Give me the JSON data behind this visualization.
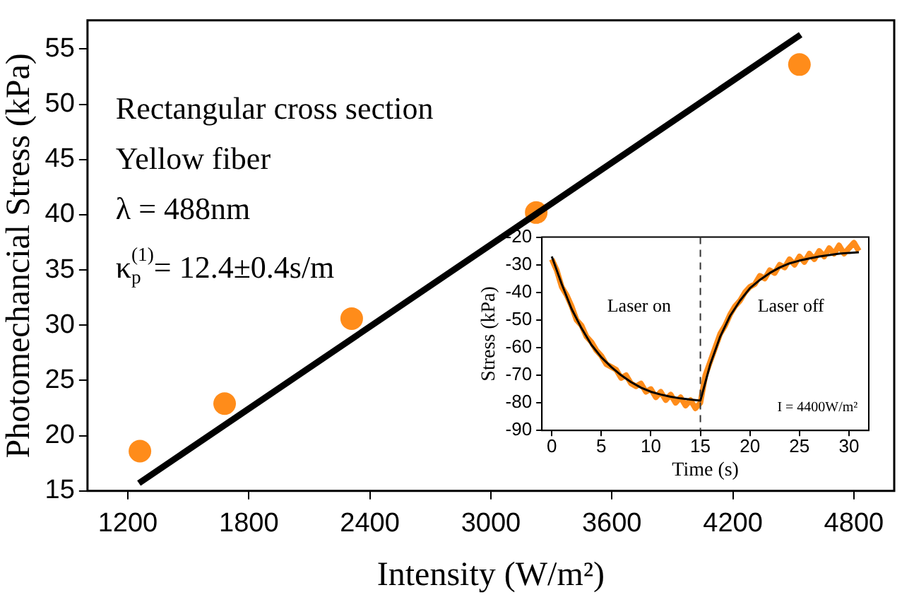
{
  "chart_data": [
    {
      "type": "scatter",
      "xlabel": "Intensity (W/m²)",
      "ylabel": "Photomechancial Stress (kPa)",
      "xlim": [
        1000,
        5000
      ],
      "ylim": [
        15,
        57.6
      ],
      "xticks": [
        1200,
        1800,
        2400,
        3000,
        3600,
        4200,
        4800
      ],
      "yticks": [
        15,
        20,
        25,
        30,
        35,
        40,
        45,
        50,
        55
      ],
      "annotations": [
        "Rectangular cross section",
        "Yellow fiber",
        "λ = 488nm",
        "κ$_{p}$$^{(1)}$= 12.4±0.4s/m"
      ],
      "series": [
        {
          "marker": "circle",
          "color": "#ff8c1a",
          "x": [
            1260,
            1680,
            2310,
            3225,
            4530
          ],
          "values": [
            18.6,
            22.9,
            30.6,
            40.2,
            53.6
          ]
        },
        {
          "type": "line",
          "color": "#000000",
          "x": [
            1255,
            4536
          ],
          "values": [
            15.7,
            56.3
          ]
        }
      ]
    },
    {
      "type": "line",
      "xlabel": "Time (s)",
      "ylabel": "Stress (kPa)",
      "xlim": [
        -1,
        32
      ],
      "ylim": [
        -90,
        -20
      ],
      "xticks": [
        0,
        5,
        10,
        15,
        20,
        25,
        30
      ],
      "yticks": [
        -90,
        -80,
        -70,
        -60,
        -50,
        -40,
        -30,
        -20
      ],
      "ref_lines": [
        {
          "axis": "x",
          "value": 15,
          "color": "#333333",
          "line_style": "dashed"
        }
      ],
      "annotations": [
        "Laser on",
        "Laser off",
        "I = 4400W/m²"
      ],
      "series": [
        {
          "color": "#ff8c1a",
          "x": [
            0,
            0.5,
            1,
            1.5,
            2,
            2.5,
            3,
            3.5,
            4,
            4.5,
            5,
            5.5,
            6,
            6.5,
            7,
            7.5,
            8,
            8.5,
            9,
            9.5,
            10,
            10.5,
            11,
            11.5,
            12,
            12.5,
            13,
            13.5,
            14,
            14.5,
            15,
            15.5,
            16,
            16.5,
            17,
            17.5,
            18,
            18.5,
            19,
            19.5,
            20,
            20.5,
            21,
            21.5,
            22,
            22.5,
            23,
            23.5,
            24,
            24.5,
            25,
            25.5,
            26,
            26.5,
            27,
            27.5,
            28,
            28.5,
            29,
            29.5,
            30,
            30.5,
            31
          ],
          "values": [
            -28,
            -32,
            -38,
            -41,
            -45,
            -50,
            -52,
            -56,
            -58,
            -61,
            -63,
            -66,
            -67,
            -68,
            -71,
            -70,
            -73,
            -74,
            -73,
            -76,
            -75,
            -78,
            -76,
            -79,
            -77,
            -80,
            -78,
            -81,
            -79,
            -82,
            -80,
            -70,
            -65,
            -60,
            -55,
            -52,
            -48,
            -45,
            -43,
            -40,
            -38,
            -37,
            -34,
            -35,
            -32,
            -33,
            -30,
            -31,
            -28,
            -30,
            -27,
            -29,
            -26,
            -28,
            -25,
            -27,
            -24,
            -26,
            -23,
            -26,
            -24,
            -22,
            -25
          ]
        },
        {
          "color": "#000000",
          "x": [
            0,
            1,
            2,
            3,
            4,
            5,
            6,
            7,
            8,
            9,
            10,
            11,
            12,
            13,
            14,
            15,
            16,
            17,
            18,
            19,
            20,
            21,
            22,
            23,
            24,
            25,
            26,
            27,
            28,
            29,
            30,
            31
          ],
          "values": [
            -27,
            -37,
            -46,
            -53,
            -59,
            -63.5,
            -67,
            -70,
            -72.5,
            -74.5,
            -76,
            -77,
            -77.8,
            -78.4,
            -78.8,
            -79.2,
            -66,
            -56,
            -48.5,
            -43,
            -38.5,
            -35.5,
            -33,
            -31,
            -29.5,
            -28.5,
            -27.7,
            -27,
            -26.5,
            -26,
            -25.7,
            -25.5
          ]
        }
      ]
    }
  ]
}
